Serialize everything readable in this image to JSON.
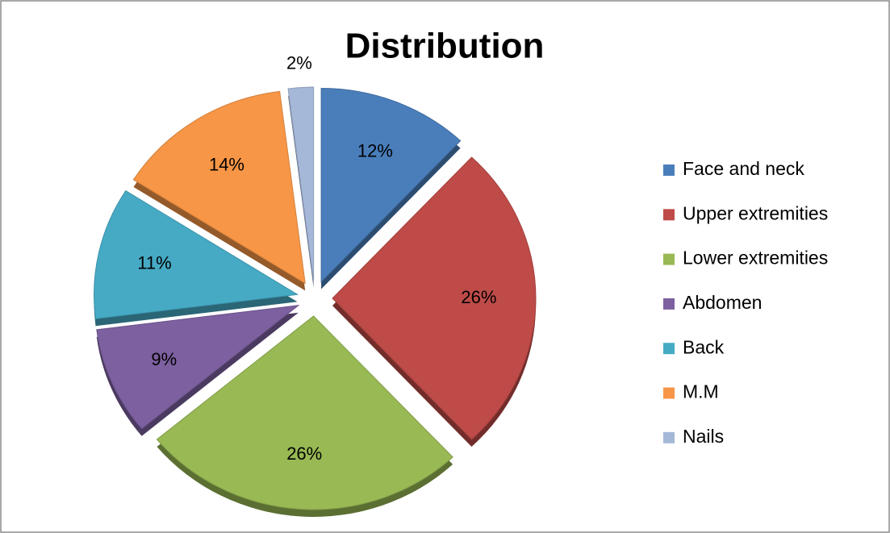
{
  "chart_data": {
    "type": "pie",
    "title": "Distribution",
    "categories": [
      "Face and neck",
      "Upper extremities",
      "Lower extremities",
      "Abdomen",
      "Back",
      "M.M",
      "Nails"
    ],
    "values": [
      12,
      26,
      26,
      9,
      11,
      14,
      2
    ],
    "value_labels": [
      "12%",
      "26%",
      "26%",
      "9%",
      "11%",
      "14%",
      "2%"
    ],
    "colors": [
      "#4a7ebb",
      "#be4b48",
      "#98b954",
      "#7d60a0",
      "#46aac5",
      "#f79646",
      "#a5b8d8"
    ],
    "legend": "right"
  }
}
